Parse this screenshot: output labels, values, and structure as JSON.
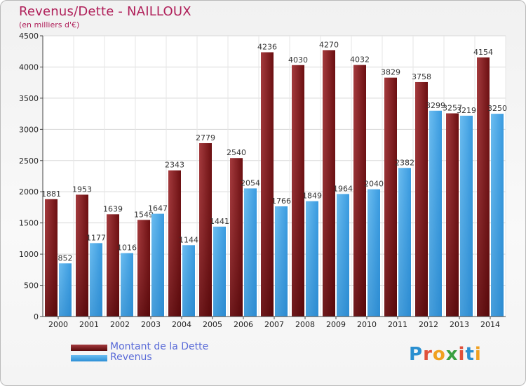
{
  "title": "Revenus/Dette - NAILLOUX",
  "subtitle": "(en milliers d'€)",
  "logo": [
    "P",
    "r",
    "o",
    "x",
    "i",
    "t",
    "i"
  ],
  "chart_data": {
    "type": "bar",
    "categories": [
      "2000",
      "2001",
      "2002",
      "2003",
      "2004",
      "2005",
      "2006",
      "2007",
      "2008",
      "2009",
      "2010",
      "2011",
      "2012",
      "2013",
      "2014"
    ],
    "series": [
      {
        "name": "Montant de la Dette",
        "values": [
          1881,
          1953,
          1639,
          1549,
          2343,
          2779,
          2540,
          4236,
          4030,
          4270,
          4032,
          3829,
          3758,
          3257,
          4154
        ],
        "color": "#7a1c1e"
      },
      {
        "name": "Revenus",
        "values": [
          852,
          1177,
          1016,
          1647,
          1144,
          1441,
          2054,
          1766,
          1849,
          1964,
          2040,
          2382,
          3299,
          3219,
          3250
        ],
        "color": "#4aa6e6"
      }
    ],
    "value_labels": [
      [
        "1881",
        "1953",
        "1639",
        "1549",
        "2343",
        "2779",
        "2540",
        "4236",
        "4030",
        "4270",
        "4032",
        "3829",
        "3758",
        "3257",
        "4154"
      ],
      [
        "852",
        "1177",
        "1016",
        "1647",
        "1144",
        "1441",
        "2054",
        "1766",
        "1849",
        "1964",
        "2040",
        "2382",
        "3299",
        "3219",
        "3250"
      ]
    ],
    "ylim": [
      0,
      4500
    ],
    "yticks": [
      "0",
      "500",
      "1000",
      "1500",
      "2000",
      "2500",
      "3000",
      "3500",
      "4000",
      "4500"
    ],
    "ytick_values": [
      0,
      500,
      1000,
      1500,
      2000,
      2500,
      3000,
      3500,
      4000,
      4500
    ],
    "grid": true,
    "legend_position": "bottom-left"
  }
}
